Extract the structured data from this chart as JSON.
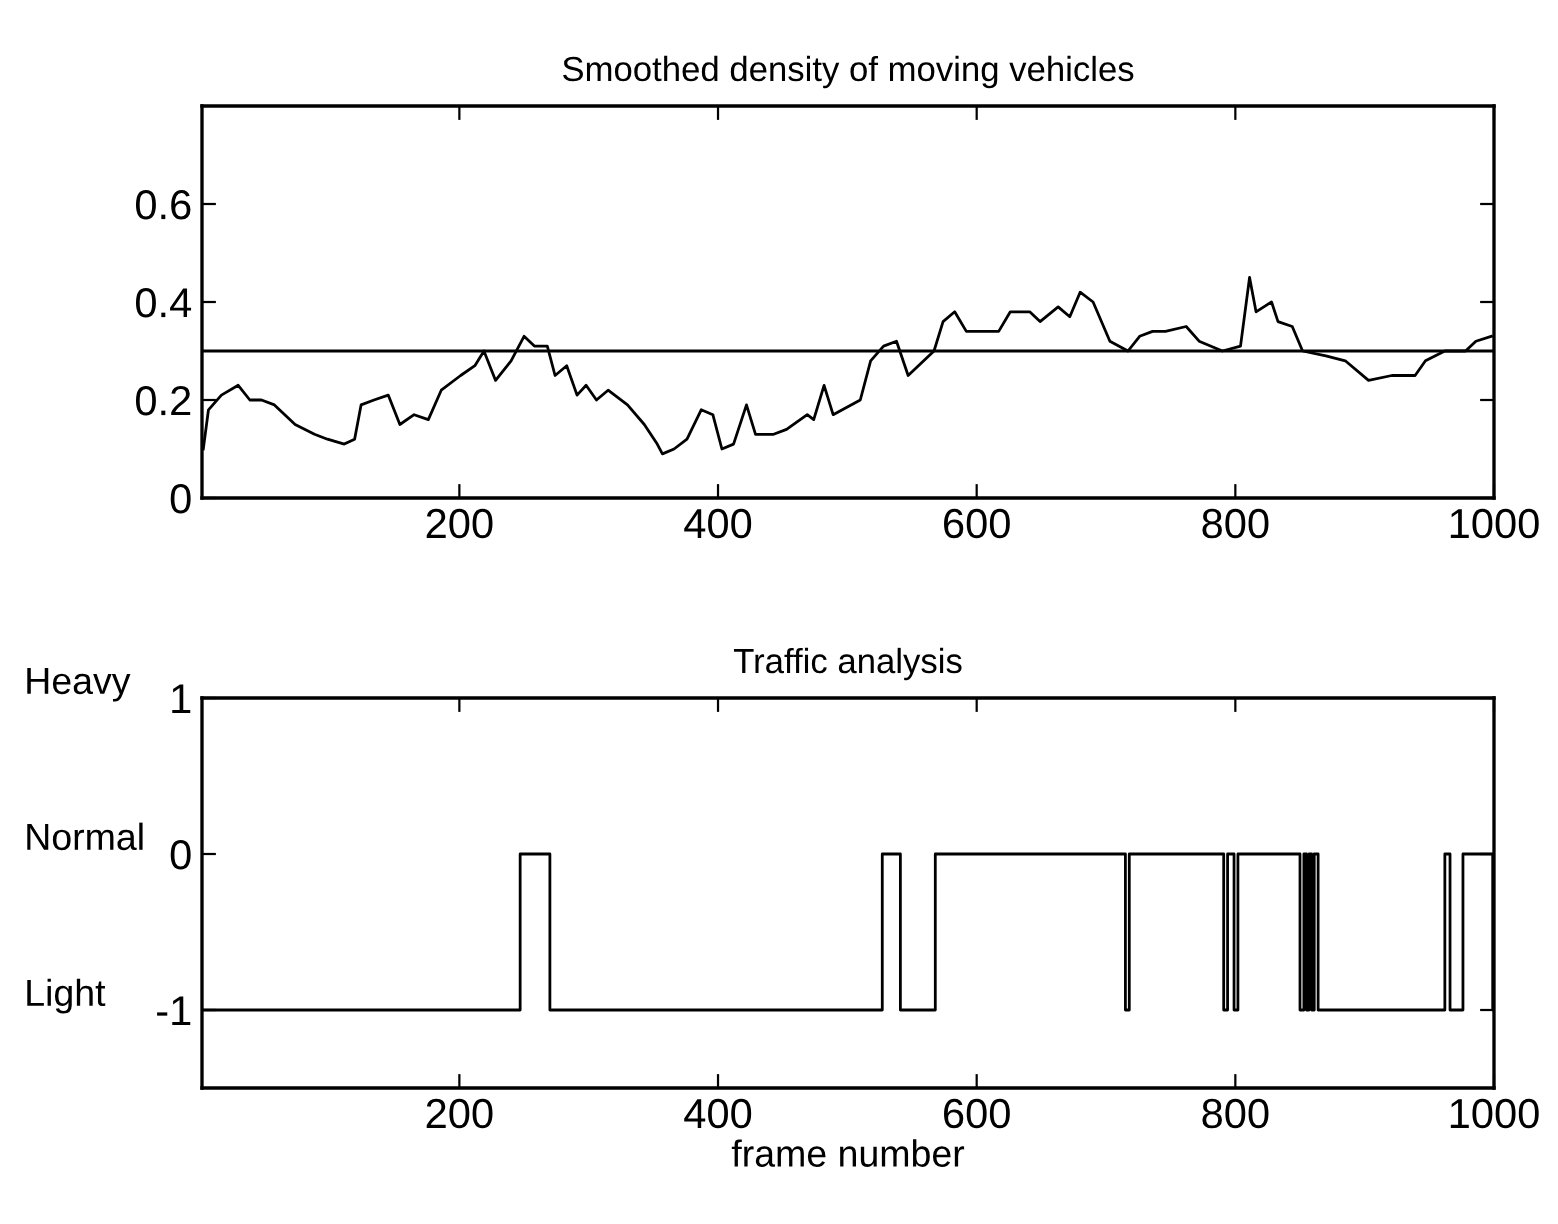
{
  "chart_data": [
    {
      "type": "line",
      "title": "Smoothed density of moving vehicles",
      "xlim": [
        1,
        1000
      ],
      "xticks": [
        200,
        400,
        600,
        800,
        1000
      ],
      "ylim": [
        0,
        0.8
      ],
      "yticks": [
        0,
        0.2,
        0.4,
        0.6
      ],
      "grid": false,
      "legend": false,
      "series": [
        {
          "color": "#000000",
          "x": [
            2,
            6,
            16,
            29,
            38,
            47,
            57,
            73,
            88,
            98,
            111,
            119,
            124,
            134,
            145,
            154,
            165,
            176,
            186,
            201,
            212,
            219,
            228,
            240,
            250,
            258,
            268,
            274,
            283,
            291,
            298,
            306,
            315,
            330,
            343,
            353,
            357,
            366,
            376,
            387,
            396,
            403,
            412,
            422,
            429,
            443,
            453,
            469,
            474,
            482,
            489,
            510,
            518,
            528,
            538,
            547,
            567,
            574,
            583,
            592,
            617,
            626,
            641,
            649,
            663,
            672,
            680,
            690,
            703,
            717,
            726,
            736,
            746,
            762,
            772,
            790,
            804,
            811,
            816,
            828,
            833,
            844,
            852,
            870,
            885,
            903,
            921,
            939,
            947,
            962,
            978,
            986,
            998
          ],
          "values": [
            0.1,
            0.18,
            0.21,
            0.23,
            0.2,
            0.2,
            0.19,
            0.15,
            0.13,
            0.12,
            0.11,
            0.12,
            0.19,
            0.2,
            0.21,
            0.15,
            0.17,
            0.16,
            0.22,
            0.25,
            0.27,
            0.3,
            0.24,
            0.28,
            0.33,
            0.31,
            0.31,
            0.25,
            0.27,
            0.21,
            0.23,
            0.2,
            0.22,
            0.19,
            0.15,
            0.11,
            0.09,
            0.1,
            0.12,
            0.18,
            0.17,
            0.1,
            0.11,
            0.19,
            0.13,
            0.13,
            0.14,
            0.17,
            0.16,
            0.23,
            0.17,
            0.2,
            0.28,
            0.31,
            0.32,
            0.25,
            0.3,
            0.36,
            0.38,
            0.34,
            0.34,
            0.38,
            0.38,
            0.36,
            0.39,
            0.37,
            0.42,
            0.4,
            0.32,
            0.3,
            0.33,
            0.34,
            0.34,
            0.35,
            0.32,
            0.3,
            0.31,
            0.45,
            0.38,
            0.4,
            0.36,
            0.35,
            0.3,
            0.29,
            0.28,
            0.24,
            0.25,
            0.25,
            0.28,
            0.3,
            0.3,
            0.32,
            0.33
          ]
        }
      ],
      "ref_lines": [
        {
          "axis": "y",
          "value": 0.3,
          "color": "#000000"
        }
      ]
    },
    {
      "type": "step",
      "title": "Traffic analysis",
      "xlabel": "frame number",
      "xlim": [
        1,
        1000
      ],
      "xticks": [
        200,
        400,
        600,
        800,
        1000
      ],
      "ylim": [
        -1.5,
        1
      ],
      "yticks": [
        -1,
        0,
        1
      ],
      "grid": false,
      "legend": false,
      "annotations": [
        "Heavy",
        "Normal",
        "Light"
      ],
      "series": [
        {
          "color": "#000000",
          "x": [
            1,
            247,
            270,
            527,
            541,
            568,
            715,
            718,
            791,
            794,
            799,
            802,
            850,
            853,
            855,
            857,
            859,
            861,
            864,
            962,
            966,
            976,
            999,
            1000
          ],
          "values": [
            -1,
            0,
            -1,
            0,
            -1,
            0,
            -1,
            0,
            -1,
            0,
            -1,
            0,
            -1,
            0,
            -1,
            0,
            -1,
            0,
            -1,
            0,
            -1,
            0,
            -1,
            -1
          ]
        }
      ]
    }
  ]
}
